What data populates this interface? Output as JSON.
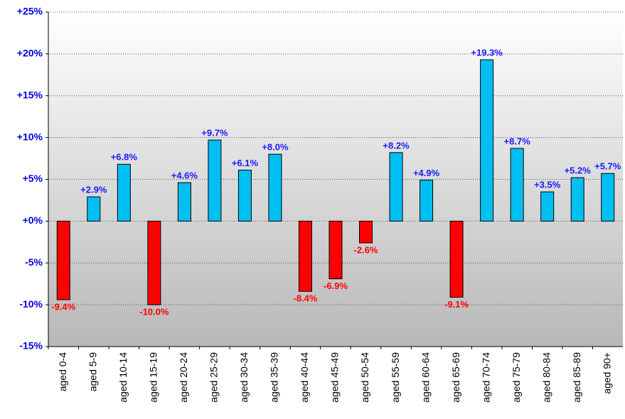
{
  "chart_data": {
    "type": "bar",
    "categories": [
      "aged 0-4",
      "aged 5-9",
      "aged 10-14",
      "aged 15-19",
      "aged 20-24",
      "aged 25-29",
      "aged 30-34",
      "aged 35-39",
      "aged 40-44",
      "aged 45-49",
      "aged 50-54",
      "aged 55-59",
      "aged 60-64",
      "aged 65-69",
      "aged 70-74",
      "aged 75-79",
      "aged 80-84",
      "aged 85-89",
      "aged 90+"
    ],
    "values": [
      -9.4,
      2.9,
      6.8,
      -10.0,
      4.6,
      9.7,
      6.1,
      8.0,
      -8.4,
      -6.9,
      -2.6,
      8.2,
      4.9,
      -9.1,
      19.3,
      8.7,
      3.5,
      5.2,
      5.7
    ],
    "value_labels": [
      "-9.4%",
      "+2.9%",
      "+6.8%",
      "-10.0%",
      "+4.6%",
      "+9.7%",
      "+6.1%",
      "+8.0%",
      "-8.4%",
      "-6.9%",
      "-2.6%",
      "+8.2%",
      "+4.9%",
      "-9.1%",
      "+19.3%",
      "+8.7%",
      "+3.5%",
      "+5.2%",
      "+5.7%"
    ],
    "positive_color": "#00bff3",
    "negative_color": "#ff0000",
    "ylim": [
      -15,
      25
    ],
    "yticks": [
      {
        "value": 25,
        "label": "+25%"
      },
      {
        "value": 20,
        "label": "+20%"
      },
      {
        "value": 15,
        "label": "+15%"
      },
      {
        "value": 10,
        "label": "+10%"
      },
      {
        "value": 5,
        "label": "+5%"
      },
      {
        "value": 0,
        "label": "+0%"
      },
      {
        "value": -5,
        "label": "-5%"
      },
      {
        "value": -10,
        "label": "-10%"
      },
      {
        "value": -15,
        "label": "-15%"
      }
    ],
    "grid": true
  }
}
